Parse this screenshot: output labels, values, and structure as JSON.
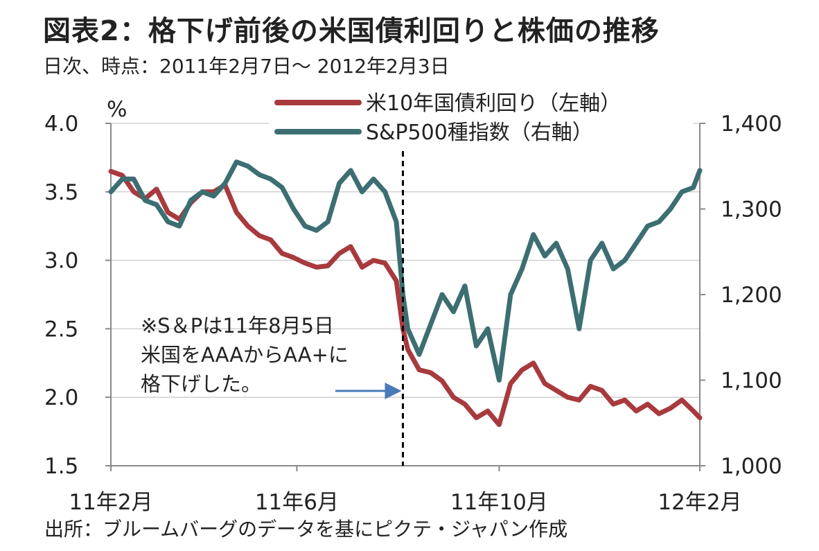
{
  "chart_data": {
    "type": "line",
    "title": "図表2：格下げ前後の米国債利回りと株価の推移",
    "subtitle": "日次、時点：2011年2月7日～ 2012年2月3日",
    "source": "出所：ブルームバーグのデータを基にピクテ・ジャパン作成",
    "y_left_unit": "%",
    "y_left": {
      "min": 1.5,
      "max": 4.0,
      "ticks": [
        "1.5",
        "2.0",
        "2.5",
        "3.0",
        "3.5",
        "4.0"
      ]
    },
    "y_right": {
      "min": 1000,
      "max": 1400,
      "ticks": [
        "1,000",
        "1,100",
        "1,200",
        "1,300",
        "1,400"
      ]
    },
    "x_tick_labels": [
      "11年2月",
      "11年6月",
      "11年10月",
      "12年2月"
    ],
    "x_ticks": [
      "2011-02-07",
      "2011-06-01",
      "2011-10-03",
      "2012-02-03"
    ],
    "grid": true,
    "legend_position": "top-center",
    "event_date": "2011-08-05",
    "annotation": [
      "※S＆Pは11年8月5日",
      "米国をAAAからAA+に",
      "格下げした。"
    ],
    "series": [
      {
        "name": "米10年国債利回り（左軸）",
        "axis": "left",
        "color": "#a83a3e",
        "x": [
          "2011-02-07",
          "2011-02-14",
          "2011-02-21",
          "2011-02-28",
          "2011-03-07",
          "2011-03-14",
          "2011-03-21",
          "2011-03-28",
          "2011-04-04",
          "2011-04-11",
          "2011-04-18",
          "2011-04-25",
          "2011-05-02",
          "2011-05-09",
          "2011-05-16",
          "2011-05-23",
          "2011-05-30",
          "2011-06-06",
          "2011-06-13",
          "2011-06-20",
          "2011-06-27",
          "2011-07-04",
          "2011-07-11",
          "2011-07-18",
          "2011-07-25",
          "2011-08-01",
          "2011-08-05",
          "2011-08-08",
          "2011-08-15",
          "2011-08-22",
          "2011-08-29",
          "2011-09-05",
          "2011-09-12",
          "2011-09-19",
          "2011-09-26",
          "2011-10-03",
          "2011-10-10",
          "2011-10-17",
          "2011-10-24",
          "2011-10-31",
          "2011-11-07",
          "2011-11-14",
          "2011-11-21",
          "2011-11-28",
          "2011-12-05",
          "2011-12-12",
          "2011-12-19",
          "2011-12-26",
          "2012-01-02",
          "2012-01-09",
          "2012-01-16",
          "2012-01-23",
          "2012-01-30",
          "2012-02-03"
        ],
        "values": [
          3.65,
          3.62,
          3.5,
          3.45,
          3.52,
          3.35,
          3.3,
          3.42,
          3.5,
          3.5,
          3.55,
          3.35,
          3.25,
          3.18,
          3.15,
          3.05,
          3.02,
          2.98,
          2.95,
          2.96,
          3.05,
          3.1,
          2.95,
          3.0,
          2.98,
          2.85,
          2.5,
          2.35,
          2.2,
          2.18,
          2.12,
          2.0,
          1.95,
          1.85,
          1.9,
          1.8,
          2.1,
          2.2,
          2.25,
          2.1,
          2.05,
          2.0,
          1.98,
          2.08,
          2.05,
          1.95,
          1.98,
          1.9,
          1.95,
          1.88,
          1.92,
          1.98,
          1.9,
          1.85
        ]
      },
      {
        "name": "S&P500種指数（右軸）",
        "axis": "right",
        "color": "#3c6e72",
        "x": [
          "2011-02-07",
          "2011-02-14",
          "2011-02-21",
          "2011-02-28",
          "2011-03-07",
          "2011-03-14",
          "2011-03-21",
          "2011-03-28",
          "2011-04-04",
          "2011-04-11",
          "2011-04-18",
          "2011-04-25",
          "2011-05-02",
          "2011-05-09",
          "2011-05-16",
          "2011-05-23",
          "2011-05-30",
          "2011-06-06",
          "2011-06-13",
          "2011-06-20",
          "2011-06-27",
          "2011-07-04",
          "2011-07-11",
          "2011-07-18",
          "2011-07-25",
          "2011-08-01",
          "2011-08-05",
          "2011-08-08",
          "2011-08-15",
          "2011-08-22",
          "2011-08-29",
          "2011-09-05",
          "2011-09-12",
          "2011-09-19",
          "2011-09-26",
          "2011-10-03",
          "2011-10-10",
          "2011-10-17",
          "2011-10-24",
          "2011-10-31",
          "2011-11-07",
          "2011-11-14",
          "2011-11-21",
          "2011-11-28",
          "2011-12-05",
          "2011-12-12",
          "2011-12-19",
          "2011-12-26",
          "2012-01-02",
          "2012-01-09",
          "2012-01-16",
          "2012-01-23",
          "2012-01-30",
          "2012-02-03"
        ],
        "values": [
          1320,
          1335,
          1335,
          1310,
          1305,
          1285,
          1280,
          1310,
          1320,
          1315,
          1330,
          1355,
          1350,
          1340,
          1335,
          1325,
          1300,
          1280,
          1275,
          1285,
          1330,
          1345,
          1320,
          1335,
          1320,
          1285,
          1200,
          1160,
          1130,
          1165,
          1200,
          1180,
          1210,
          1140,
          1160,
          1100,
          1200,
          1230,
          1270,
          1245,
          1260,
          1230,
          1160,
          1240,
          1260,
          1230,
          1240,
          1260,
          1280,
          1285,
          1300,
          1320,
          1325,
          1345
        ]
      }
    ]
  }
}
